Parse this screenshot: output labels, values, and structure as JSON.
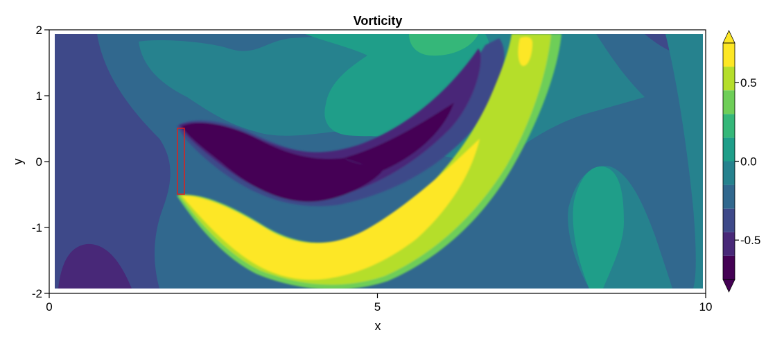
{
  "chart_data": {
    "type": "heatmap",
    "title": "Vorticity",
    "xlabel": "x",
    "ylabel": "y",
    "xlim": [
      0,
      10
    ],
    "ylim": [
      -2,
      2
    ],
    "x_ticks": [
      {
        "value": 0,
        "label": "0"
      },
      {
        "value": 5,
        "label": "5"
      },
      {
        "value": 10,
        "label": "10"
      }
    ],
    "y_ticks": [
      {
        "value": 2,
        "label": "2"
      },
      {
        "value": 1,
        "label": "1"
      },
      {
        "value": 0,
        "label": "0"
      },
      {
        "value": -1,
        "label": "-1"
      },
      {
        "value": -2,
        "label": "-2"
      }
    ],
    "colorbar": {
      "colormap": "viridis",
      "range": [
        -0.75,
        0.75
      ],
      "levels": [
        -0.75,
        -0.625,
        -0.5,
        -0.375,
        -0.25,
        -0.125,
        0.0,
        0.125,
        0.25,
        0.375,
        0.5,
        0.625,
        0.75
      ],
      "extend": "both",
      "ticks": [
        {
          "value": 0.5,
          "label": "0.5"
        },
        {
          "value": 0.0,
          "label": "0.0"
        },
        {
          "value": -0.5,
          "label": "-0.5"
        }
      ],
      "colors": [
        "#440154",
        "#482878",
        "#3e4989",
        "#31688e",
        "#26828e",
        "#1f9e89",
        "#35b779",
        "#6ece58",
        "#b5de2b",
        "#fde725"
      ]
    },
    "body": {
      "shape": "rectangle",
      "x": [
        1.95,
        2.05
      ],
      "y": [
        -0.5,
        0.5
      ],
      "edge_color": "#e0201b"
    }
  }
}
